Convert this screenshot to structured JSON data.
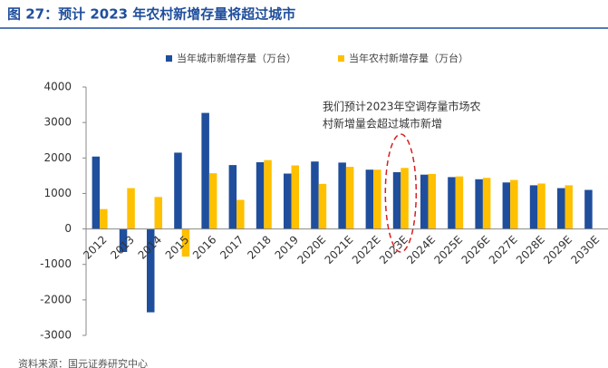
{
  "chart_data": {
    "type": "bar",
    "title": "图 27：预计 2023 年农村新增存量将超过城市",
    "categories": [
      "2012",
      "2013",
      "2014",
      "2015",
      "2016",
      "2017",
      "2018",
      "2019",
      "2020E",
      "2021E",
      "2022E",
      "2023E",
      "2024E",
      "2025E",
      "2026E",
      "2027E",
      "2028E",
      "2029E",
      "2030E"
    ],
    "series": [
      {
        "name": "当年城市新增存量（万台）",
        "color": "#1f4e9c",
        "values": [
          2040,
          -650,
          -2350,
          2150,
          3270,
          1800,
          1880,
          1560,
          1900,
          1870,
          1670,
          1600,
          1530,
          1460,
          1400,
          1310,
          1230,
          1150,
          1100
        ]
      },
      {
        "name": "当年农村新增存量（万台）",
        "color": "#ffc000",
        "values": [
          560,
          1150,
          900,
          -780,
          1570,
          820,
          1940,
          1790,
          1270,
          1750,
          1670,
          1720,
          1550,
          1480,
          1440,
          1380,
          1280,
          1230,
          null
        ]
      }
    ],
    "ylim": [
      -3000,
      4000
    ],
    "yticks": [
      -3000,
      -2000,
      -1000,
      0,
      1000,
      2000,
      3000,
      4000
    ],
    "grid": false,
    "legend": "top",
    "annotation": [
      "我们预计2023年空调存量市场农",
      "村新增量会超过城市新增"
    ],
    "source": "资料来源：国元证券研究中心"
  }
}
